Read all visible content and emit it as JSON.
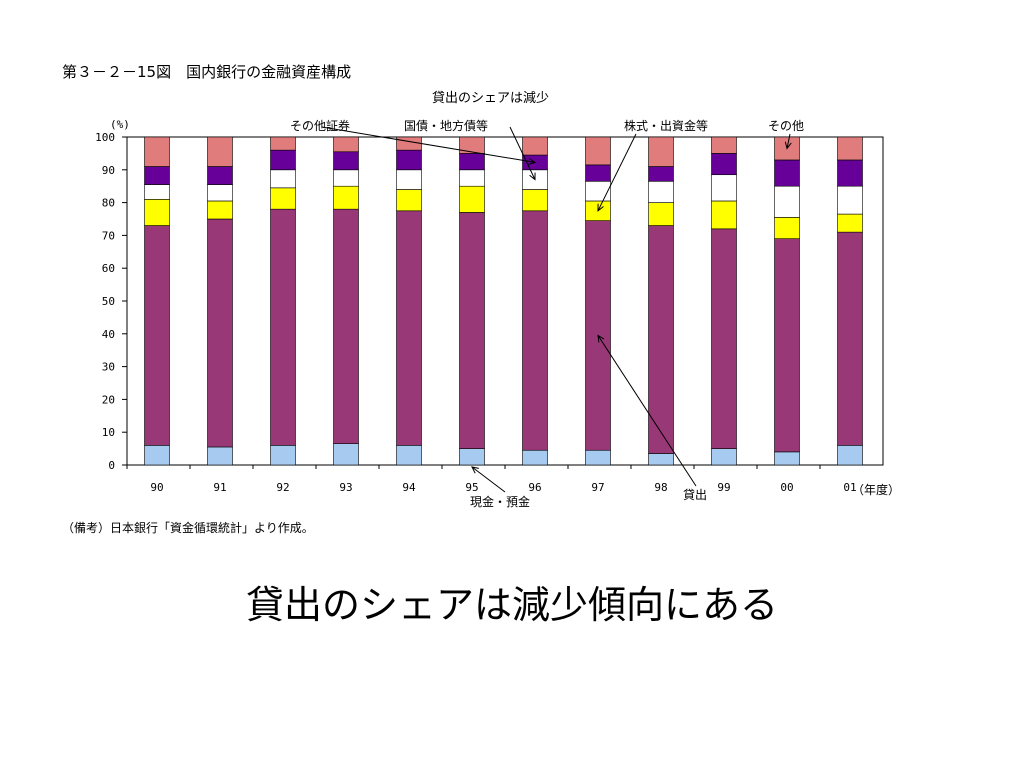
{
  "figure": {
    "title": "第３－２－15図　国内銀行の金融資産構成",
    "subtitle": "貸出のシェアは減少",
    "note": "（備考）日本銀行「資金循環統計」より作成。"
  },
  "slide": {
    "caption": "貸出のシェアは減少傾向にある"
  },
  "chart_data": {
    "type": "bar",
    "stacked": true,
    "categories": [
      "90",
      "91",
      "92",
      "93",
      "94",
      "95",
      "96",
      "97",
      "98",
      "99",
      "00",
      "01"
    ],
    "xlabel": "（年度）",
    "ylabel": "(%)",
    "ylim": [
      0,
      100
    ],
    "yticks": [
      0,
      10,
      20,
      30,
      40,
      50,
      60,
      70,
      80,
      90,
      100
    ],
    "grid": false,
    "series": [
      {
        "name": "現金・預金",
        "color": "#a6caf0",
        "values": [
          6,
          5.5,
          6,
          6.5,
          6,
          5,
          4.5,
          4.5,
          3.5,
          5,
          4,
          6
        ]
      },
      {
        "name": "貸出",
        "color": "#993877",
        "values": [
          67,
          69.5,
          72,
          71.5,
          71.5,
          72,
          73,
          70,
          69.5,
          67,
          65,
          65
        ]
      },
      {
        "name": "株式・出資金等",
        "color": "#ffff00",
        "values": [
          8,
          5.5,
          6.5,
          7,
          6.5,
          8,
          6.5,
          6,
          7,
          8.5,
          6.5,
          5.5
        ]
      },
      {
        "name": "国債・地方債等",
        "color": "#ffffff",
        "values": [
          4.5,
          5,
          5.5,
          5,
          6,
          5,
          6,
          6,
          6.5,
          8,
          9.5,
          8.5
        ]
      },
      {
        "name": "その他証券",
        "color": "#660099",
        "values": [
          5.5,
          5.5,
          6,
          5.5,
          6,
          5,
          4.5,
          5,
          4.5,
          6.5,
          8,
          8
        ]
      },
      {
        "name": "その他",
        "color": "#e07c7c",
        "values": [
          9,
          9,
          4,
          4.5,
          4,
          5,
          5.5,
          8.5,
          9,
          5,
          7,
          7
        ]
      }
    ],
    "annotations": [
      {
        "label": "その他証券",
        "series": "その他証券",
        "category": "96"
      },
      {
        "label": "国債・地方債等",
        "series": "国債・地方債等",
        "category": "96"
      },
      {
        "label": "株式・出資金等",
        "series": "株式・出資金等",
        "category": "97"
      },
      {
        "label": "その他",
        "series": "その他",
        "category": "00"
      },
      {
        "label": "貸出",
        "series": "貸出",
        "category": "97"
      },
      {
        "label": "現金・預金",
        "series": "現金・預金",
        "category": "95"
      }
    ]
  }
}
